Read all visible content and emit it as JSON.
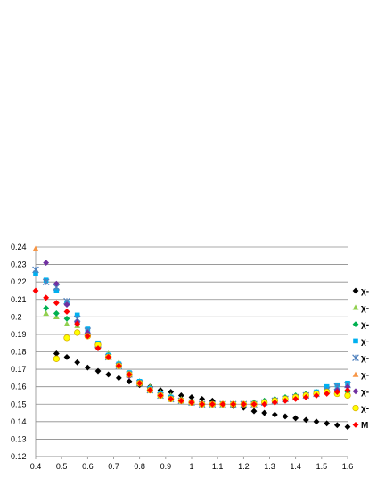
{
  "chart_data": {
    "type": "scatter",
    "title": "",
    "xlabel": "",
    "ylabel": "",
    "xlim": [
      0.4,
      1.6
    ],
    "ylim": [
      0.12,
      0.24
    ],
    "xticks": [
      "0.4",
      "0.5",
      "0.6",
      "0.7",
      "0.8",
      "0.9",
      "1",
      "1.1",
      "1.2",
      "1.3",
      "1.4",
      "1.5",
      "1.6"
    ],
    "yticks": [
      "0.12",
      "0.13",
      "0.14",
      "0.15",
      "0.16",
      "0.17",
      "0.18",
      "0.19",
      "0.2",
      "0.21",
      "0.22",
      "0.23",
      "0.24"
    ],
    "grid": "horizontal",
    "legend_position": "right",
    "series": [
      {
        "name": "χ-",
        "marker": "diamond",
        "color": "#000000",
        "x": [
          0.48,
          0.52,
          0.56,
          0.6,
          0.64,
          0.68,
          0.72,
          0.76,
          0.8,
          0.84,
          0.88,
          0.92,
          0.96,
          1.0,
          1.04,
          1.08,
          1.12,
          1.16,
          1.2,
          1.24,
          1.28,
          1.32,
          1.36,
          1.4,
          1.44,
          1.48,
          1.52,
          1.56,
          1.6
        ],
        "y": [
          0.179,
          0.177,
          0.174,
          0.171,
          0.169,
          0.167,
          0.165,
          0.163,
          0.161,
          0.16,
          0.158,
          0.157,
          0.155,
          0.154,
          0.153,
          0.152,
          0.15,
          0.149,
          0.148,
          0.146,
          0.145,
          0.144,
          0.143,
          0.142,
          0.141,
          0.14,
          0.139,
          0.138,
          0.137
        ]
      },
      {
        "name": "χ-",
        "marker": "triangle",
        "color": "#92d050",
        "x": [
          0.44,
          0.48,
          0.52,
          0.56,
          0.6,
          0.64,
          0.68,
          0.72,
          0.76,
          0.8,
          0.84,
          0.88,
          0.92,
          0.96,
          1.0,
          1.04,
          1.08,
          1.12,
          1.16,
          1.2,
          1.24,
          1.28,
          1.32,
          1.36,
          1.4,
          1.44,
          1.48,
          1.52,
          1.56,
          1.6
        ],
        "y": [
          0.202,
          0.2,
          0.196,
          0.195,
          0.19,
          0.184,
          0.179,
          0.174,
          0.168,
          0.163,
          0.16,
          0.157,
          0.155,
          0.153,
          0.151,
          0.15,
          0.15,
          0.15,
          0.15,
          0.15,
          0.151,
          0.152,
          0.153,
          0.154,
          0.155,
          0.156,
          0.157,
          0.158,
          0.158,
          0.157
        ]
      },
      {
        "name": "χ-",
        "marker": "diamond",
        "color": "#00b050",
        "x": [
          0.44,
          0.48,
          0.52,
          0.56,
          0.6,
          0.64,
          0.68,
          0.72,
          0.76,
          0.8,
          0.84,
          0.88,
          0.92,
          0.96,
          1.0,
          1.04,
          1.08,
          1.12,
          1.16,
          1.2,
          1.24,
          1.28,
          1.32,
          1.36,
          1.4,
          1.44,
          1.48,
          1.52,
          1.56,
          1.6
        ],
        "y": [
          0.205,
          0.202,
          0.199,
          0.196,
          0.19,
          0.183,
          0.178,
          0.173,
          0.167,
          0.163,
          0.159,
          0.156,
          0.154,
          0.152,
          0.151,
          0.15,
          0.15,
          0.15,
          0.15,
          0.15,
          0.151,
          0.152,
          0.153,
          0.154,
          0.155,
          0.156,
          0.157,
          0.158,
          0.158,
          0.157
        ]
      },
      {
        "name": "χ-",
        "marker": "square",
        "color": "#00b0f0",
        "x": [
          0.4,
          0.44,
          0.48,
          0.52,
          0.56,
          0.6,
          0.64,
          0.68,
          0.72,
          0.76,
          0.8,
          0.84,
          0.88,
          0.92,
          0.96,
          1.0,
          1.04,
          1.08,
          1.12,
          1.16,
          1.2,
          1.24,
          1.28,
          1.32,
          1.36,
          1.4,
          1.44,
          1.48,
          1.52,
          1.56,
          1.6
        ],
        "y": [
          0.225,
          0.221,
          0.215,
          0.208,
          0.201,
          0.193,
          0.185,
          0.178,
          0.173,
          0.168,
          0.163,
          0.159,
          0.156,
          0.154,
          0.152,
          0.151,
          0.15,
          0.15,
          0.15,
          0.15,
          0.15,
          0.15,
          0.151,
          0.152,
          0.153,
          0.154,
          0.155,
          0.157,
          0.16,
          0.161,
          0.162
        ]
      },
      {
        "name": "χ-",
        "marker": "star",
        "color": "#4f81bd",
        "x": [
          0.4,
          0.44,
          0.48,
          0.52,
          0.56,
          0.6,
          0.64,
          0.68,
          0.72,
          0.76,
          0.8,
          0.84,
          0.88,
          0.92,
          0.96,
          1.0,
          1.04,
          1.08,
          1.12,
          1.16,
          1.2,
          1.24,
          1.28,
          1.32,
          1.36,
          1.4,
          1.44,
          1.48,
          1.52,
          1.56,
          1.6
        ],
        "y": [
          0.227,
          0.22,
          0.217,
          0.209,
          0.199,
          0.192,
          0.184,
          0.177,
          0.172,
          0.167,
          0.162,
          0.158,
          0.155,
          0.153,
          0.152,
          0.151,
          0.15,
          0.15,
          0.15,
          0.15,
          0.15,
          0.15,
          0.151,
          0.152,
          0.153,
          0.154,
          0.155,
          0.156,
          0.158,
          0.16,
          0.161
        ]
      },
      {
        "name": "χ-",
        "marker": "triangle",
        "color": "#f79646",
        "x": [
          0.4
        ],
        "y": [
          0.239
        ]
      },
      {
        "name": "χ-",
        "marker": "diamond",
        "color": "#7030a0",
        "x": [
          0.44,
          0.48,
          0.52,
          0.56,
          0.6,
          0.64,
          0.68,
          0.72,
          0.76,
          0.8,
          0.84,
          0.88,
          0.92,
          0.96,
          1.0,
          1.04,
          1.08,
          1.12,
          1.16,
          1.2,
          1.24,
          1.28,
          1.32,
          1.36,
          1.4,
          1.44,
          1.48,
          1.52,
          1.56,
          1.6
        ],
        "y": [
          0.231,
          0.219,
          0.207,
          0.197,
          0.191,
          0.183,
          0.177,
          0.172,
          0.166,
          0.162,
          0.158,
          0.155,
          0.153,
          0.152,
          0.151,
          0.15,
          0.15,
          0.15,
          0.15,
          0.15,
          0.15,
          0.151,
          0.152,
          0.153,
          0.154,
          0.155,
          0.156,
          0.157,
          0.158,
          0.16
        ]
      },
      {
        "name": "χ-",
        "marker": "circle",
        "color": "#ffff00",
        "x": [
          0.48,
          0.52,
          0.56,
          0.6,
          0.64,
          0.68,
          0.72,
          0.76,
          0.8,
          0.84,
          0.88,
          0.92,
          0.96,
          1.0,
          1.04,
          1.08,
          1.12,
          1.16,
          1.2,
          1.24,
          1.28,
          1.32,
          1.36,
          1.4,
          1.44,
          1.48,
          1.52,
          1.56,
          1.6
        ],
        "y": [
          0.176,
          0.188,
          0.191,
          0.189,
          0.184,
          0.177,
          0.172,
          0.167,
          0.162,
          0.158,
          0.155,
          0.153,
          0.152,
          0.151,
          0.15,
          0.15,
          0.15,
          0.15,
          0.15,
          0.15,
          0.151,
          0.152,
          0.153,
          0.154,
          0.155,
          0.156,
          0.157,
          0.156,
          0.155
        ]
      },
      {
        "name": "M",
        "marker": "diamond",
        "color": "#ff0000",
        "x": [
          0.4,
          0.44,
          0.48,
          0.52,
          0.56,
          0.6,
          0.64,
          0.68,
          0.72,
          0.76,
          0.8,
          0.84,
          0.88,
          0.92,
          0.96,
          1.0,
          1.04,
          1.08,
          1.12,
          1.16,
          1.2,
          1.24,
          1.28,
          1.32,
          1.36,
          1.4,
          1.44,
          1.48,
          1.52,
          1.56,
          1.6
        ],
        "y": [
          0.215,
          0.211,
          0.208,
          0.203,
          0.196,
          0.189,
          0.182,
          0.177,
          0.172,
          0.167,
          0.162,
          0.158,
          0.155,
          0.153,
          0.152,
          0.151,
          0.15,
          0.15,
          0.15,
          0.15,
          0.15,
          0.15,
          0.15,
          0.151,
          0.152,
          0.153,
          0.154,
          0.155,
          0.156,
          0.157,
          0.158
        ]
      }
    ]
  }
}
